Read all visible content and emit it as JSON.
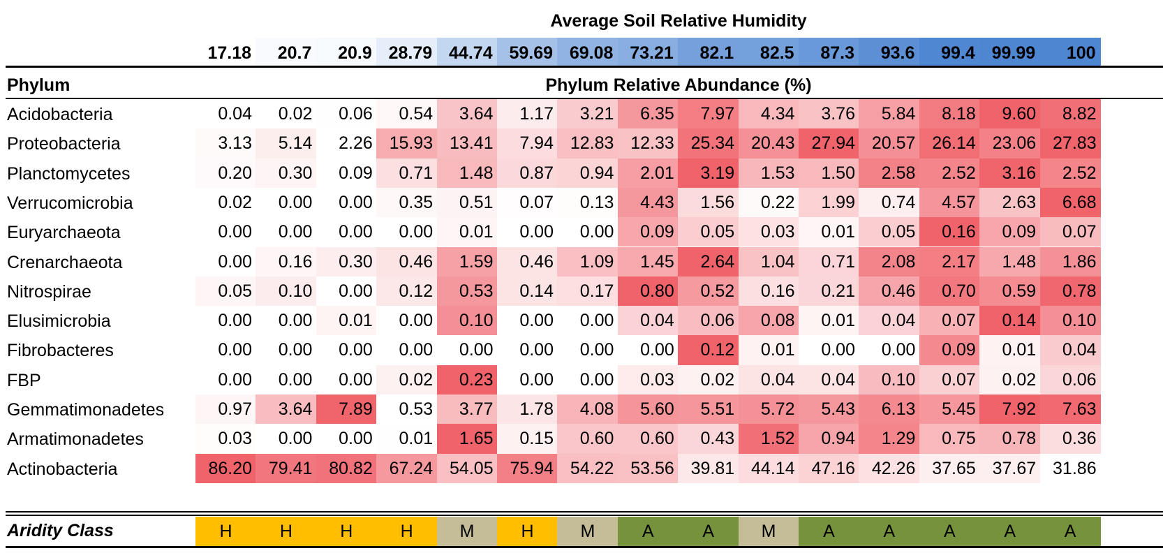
{
  "chart_data": {
    "type": "heatmap",
    "title": "Average Soil Relative Humidity",
    "columns": [
      "17.18",
      "20.7",
      "20.9",
      "28.79",
      "44.74",
      "59.69",
      "69.08",
      "73.21",
      "82.1",
      "82.5",
      "87.3",
      "93.6",
      "99.4",
      "99.99",
      "100"
    ],
    "row_header": "Phylum",
    "value_header": "Phylum Relative Abundance (%)",
    "rows": [
      {
        "name": "Acidobacteria",
        "values": [
          "0.04",
          "0.02",
          "0.06",
          "0.54",
          "3.64",
          "1.17",
          "3.21",
          "6.35",
          "7.97",
          "4.34",
          "3.76",
          "5.84",
          "8.18",
          "9.60",
          "8.82"
        ]
      },
      {
        "name": "Proteobacteria",
        "values": [
          "3.13",
          "5.14",
          "2.26",
          "15.93",
          "13.41",
          "7.94",
          "12.83",
          "12.33",
          "25.34",
          "20.43",
          "27.94",
          "20.57",
          "26.14",
          "23.06",
          "27.83"
        ]
      },
      {
        "name": "Planctomycetes",
        "values": [
          "0.20",
          "0.30",
          "0.09",
          "0.71",
          "1.48",
          "0.87",
          "0.94",
          "2.01",
          "3.19",
          "1.53",
          "1.50",
          "2.58",
          "2.52",
          "3.16",
          "2.52"
        ]
      },
      {
        "name": "Verrucomicrobia",
        "values": [
          "0.02",
          "0.00",
          "0.00",
          "0.35",
          "0.51",
          "0.07",
          "0.13",
          "4.43",
          "1.56",
          "0.22",
          "1.99",
          "0.74",
          "4.57",
          "2.63",
          "6.68"
        ]
      },
      {
        "name": "Euryarchaeota",
        "values": [
          "0.00",
          "0.00",
          "0.00",
          "0.00",
          "0.01",
          "0.00",
          "0.00",
          "0.09",
          "0.05",
          "0.03",
          "0.01",
          "0.05",
          "0.16",
          "0.09",
          "0.07"
        ]
      },
      {
        "name": "Crenarchaeota",
        "values": [
          "0.00",
          "0.16",
          "0.30",
          "0.46",
          "1.59",
          "0.46",
          "1.09",
          "1.45",
          "2.64",
          "1.04",
          "0.71",
          "2.08",
          "2.17",
          "1.48",
          "1.86"
        ]
      },
      {
        "name": "Nitrospirae",
        "values": [
          "0.05",
          "0.10",
          "0.00",
          "0.12",
          "0.53",
          "0.14",
          "0.17",
          "0.80",
          "0.52",
          "0.16",
          "0.21",
          "0.46",
          "0.70",
          "0.59",
          "0.78"
        ]
      },
      {
        "name": "Elusimicrobia",
        "values": [
          "0.00",
          "0.00",
          "0.01",
          "0.00",
          "0.10",
          "0.00",
          "0.00",
          "0.04",
          "0.06",
          "0.08",
          "0.01",
          "0.04",
          "0.07",
          "0.14",
          "0.10"
        ]
      },
      {
        "name": "Fibrobacteres",
        "values": [
          "0.00",
          "0.00",
          "0.00",
          "0.00",
          "0.00",
          "0.00",
          "0.00",
          "0.00",
          "0.12",
          "0.01",
          "0.00",
          "0.00",
          "0.09",
          "0.01",
          "0.04"
        ]
      },
      {
        "name": "FBP",
        "values": [
          "0.00",
          "0.00",
          "0.00",
          "0.02",
          "0.23",
          "0.00",
          "0.00",
          "0.03",
          "0.02",
          "0.04",
          "0.04",
          "0.10",
          "0.07",
          "0.02",
          "0.06"
        ]
      },
      {
        "name": "Gemmatimonadetes",
        "values": [
          "0.97",
          "3.64",
          "7.89",
          "0.53",
          "3.77",
          "1.78",
          "4.08",
          "5.60",
          "5.51",
          "5.72",
          "5.43",
          "6.13",
          "5.45",
          "7.92",
          "7.63"
        ]
      },
      {
        "name": "Armatimonadetes",
        "values": [
          "0.03",
          "0.00",
          "0.00",
          "0.01",
          "1.65",
          "0.15",
          "0.60",
          "0.60",
          "0.43",
          "1.52",
          "0.94",
          "1.29",
          "0.75",
          "0.78",
          "0.36"
        ]
      },
      {
        "name": "Actinobacteria",
        "values": [
          "86.20",
          "79.41",
          "80.82",
          "67.24",
          "54.05",
          "75.94",
          "54.22",
          "53.56",
          "39.81",
          "44.14",
          "47.16",
          "42.26",
          "37.65",
          "37.67",
          "31.86"
        ]
      }
    ],
    "aridity": {
      "label": "Aridity Class",
      "values": [
        "H",
        "H",
        "H",
        "H",
        "M",
        "H",
        "M",
        "A",
        "A",
        "M",
        "A",
        "A",
        "A",
        "A",
        "A"
      ]
    },
    "colors": {
      "heat_low": "#ffffff",
      "heat_high": "#f0636b",
      "humidity_low": "#ffffff",
      "humidity_high": "#4f86d2",
      "aridity_H": "#ffbf00",
      "aridity_M": "#c4bd97",
      "aridity_A": "#76923c"
    }
  }
}
